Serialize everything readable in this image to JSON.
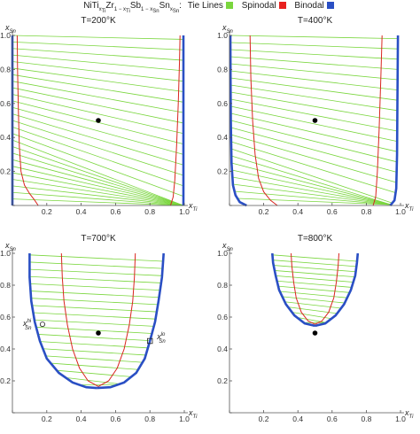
{
  "legend": {
    "title_prefix": "NiTi",
    "sub1": "x",
    "sub1b": "Ti",
    "title_mid1": "Zr",
    "sub2": "1 − x",
    "sub2b": "Ti",
    "title_mid2": "Sb",
    "sub3": "1 − x",
    "sub3b": "Sn",
    "title_mid3": "Sn",
    "sub4": "x",
    "sub4b": "Sn",
    "title_suffix": ":",
    "entries": [
      {
        "label": "Tie Lines",
        "color": "#7ad63e"
      },
      {
        "label": "Spinodal",
        "color": "#e8211f"
      },
      {
        "label": "Binodal",
        "color": "#2a4fc4"
      }
    ]
  },
  "colors": {
    "tie": "#7ad63e",
    "spinodal": "#d9251f",
    "binodal": "#2a4fc4",
    "point": "#000000"
  },
  "chart_data": [
    {
      "type": "line",
      "title": "T=200°K",
      "xlabel": "x",
      "xlabel_sub": "Ti",
      "ylabel": "x",
      "ylabel_sub": "Sn",
      "xlim": [
        0,
        1.0
      ],
      "ylim": [
        0,
        1.0
      ],
      "xticks": [
        "",
        "0.2",
        "0.4",
        "0.6",
        "0.8",
        "1.0"
      ],
      "yticks": [
        "",
        "0.2",
        "0.4",
        "0.6",
        "0.8",
        "1.0"
      ],
      "alloy_point": [
        0.5,
        0.5
      ],
      "tie_line_count": 26,
      "binodal_left": [
        [
          0.0,
          0.0
        ],
        [
          0.0,
          1.0
        ]
      ],
      "binodal_right": [
        [
          0.995,
          0.0
        ],
        [
          0.995,
          1.0
        ]
      ],
      "spinodal_left": [
        [
          0.15,
          0.0
        ],
        [
          0.13,
          0.03
        ],
        [
          0.1,
          0.07
        ],
        [
          0.07,
          0.12
        ],
        [
          0.05,
          0.2
        ],
        [
          0.04,
          0.35
        ],
        [
          0.035,
          0.55
        ],
        [
          0.03,
          0.8
        ],
        [
          0.028,
          1.0
        ]
      ],
      "spinodal_right": [
        [
          0.92,
          0.0
        ],
        [
          0.935,
          0.05
        ],
        [
          0.945,
          0.15
        ],
        [
          0.955,
          0.35
        ],
        [
          0.965,
          0.6
        ],
        [
          0.972,
          0.85
        ],
        [
          0.975,
          1.0
        ]
      ]
    },
    {
      "type": "line",
      "title": "T=400°K",
      "xlabel": "x",
      "xlabel_sub": "Ti",
      "ylabel": "x",
      "ylabel_sub": "Sn",
      "xlim": [
        0,
        1.0
      ],
      "ylim": [
        0,
        1.0
      ],
      "xticks": [
        "",
        "0.2",
        "0.4",
        "0.6",
        "0.8",
        "1.0"
      ],
      "yticks": [
        "",
        "0.2",
        "0.4",
        "0.6",
        "0.8",
        "1.0"
      ],
      "alloy_point": [
        0.5,
        0.5
      ],
      "tie_line_count": 24,
      "binodal_left": [
        [
          0.1,
          0.0
        ],
        [
          0.06,
          0.02
        ],
        [
          0.035,
          0.06
        ],
        [
          0.02,
          0.12
        ],
        [
          0.012,
          0.25
        ],
        [
          0.008,
          0.5
        ],
        [
          0.006,
          0.75
        ],
        [
          0.005,
          1.0
        ]
      ],
      "binodal_right": [
        [
          0.94,
          0.0
        ],
        [
          0.965,
          0.03
        ],
        [
          0.975,
          0.1
        ],
        [
          0.98,
          0.3
        ],
        [
          0.982,
          0.6
        ],
        [
          0.985,
          1.0
        ]
      ],
      "spinodal_left": [
        [
          0.28,
          0.0
        ],
        [
          0.24,
          0.03
        ],
        [
          0.2,
          0.08
        ],
        [
          0.17,
          0.16
        ],
        [
          0.15,
          0.3
        ],
        [
          0.135,
          0.5
        ],
        [
          0.125,
          0.75
        ],
        [
          0.12,
          1.0
        ]
      ],
      "spinodal_right": [
        [
          0.84,
          0.0
        ],
        [
          0.855,
          0.05
        ],
        [
          0.865,
          0.2
        ],
        [
          0.875,
          0.45
        ],
        [
          0.885,
          0.75
        ],
        [
          0.892,
          1.0
        ]
      ]
    },
    {
      "type": "line",
      "title": "T=700°K",
      "xlabel": "x",
      "xlabel_sub": "Ti",
      "ylabel": "x",
      "ylabel_sub": "Sn",
      "xlim": [
        0,
        1.0
      ],
      "ylim": [
        0,
        1.0
      ],
      "xticks": [
        "",
        "0.2",
        "0.4",
        "0.6",
        "0.8",
        "1.0"
      ],
      "yticks": [
        "",
        "0.2",
        "0.4",
        "0.6",
        "0.8",
        "1.0"
      ],
      "alloy_point": [
        0.5,
        0.5
      ],
      "tie_line_count": 19,
      "binodal_left": [
        [
          0.49,
          0.155
        ],
        [
          0.43,
          0.16
        ],
        [
          0.35,
          0.19
        ],
        [
          0.27,
          0.25
        ],
        [
          0.2,
          0.34
        ],
        [
          0.16,
          0.45
        ],
        [
          0.13,
          0.57
        ],
        [
          0.11,
          0.7
        ],
        [
          0.1,
          0.85
        ],
        [
          0.1,
          1.0
        ]
      ],
      "binodal_right": [
        [
          0.49,
          0.155
        ],
        [
          0.57,
          0.16
        ],
        [
          0.65,
          0.19
        ],
        [
          0.72,
          0.25
        ],
        [
          0.77,
          0.34
        ],
        [
          0.8,
          0.45
        ],
        [
          0.83,
          0.57
        ],
        [
          0.85,
          0.7
        ],
        [
          0.87,
          0.85
        ],
        [
          0.88,
          1.0
        ]
      ],
      "spinodal_left": [
        [
          0.5,
          0.165
        ],
        [
          0.44,
          0.2
        ],
        [
          0.39,
          0.28
        ],
        [
          0.35,
          0.4
        ],
        [
          0.32,
          0.55
        ],
        [
          0.3,
          0.7
        ],
        [
          0.29,
          0.85
        ],
        [
          0.285,
          1.0
        ]
      ],
      "spinodal_right": [
        [
          0.5,
          0.165
        ],
        [
          0.56,
          0.2
        ],
        [
          0.61,
          0.28
        ],
        [
          0.65,
          0.4
        ],
        [
          0.68,
          0.55
        ],
        [
          0.7,
          0.7
        ],
        [
          0.71,
          0.85
        ],
        [
          0.715,
          1.0
        ]
      ],
      "annotations": [
        {
          "label": "x",
          "sup": "hi",
          "sub": "Sn",
          "point": [
            0.175,
            0.555
          ],
          "marker": "circle"
        },
        {
          "label": "x",
          "sup": "lo",
          "sub": "Sn",
          "point": [
            0.8,
            0.45
          ],
          "marker": "square"
        }
      ]
    },
    {
      "type": "line",
      "title": "T=800°K",
      "xlabel": "x",
      "xlabel_sub": "Ti",
      "ylabel": "x",
      "ylabel_sub": "Sn",
      "xlim": [
        0,
        1.0
      ],
      "ylim": [
        0,
        1.0
      ],
      "xticks": [
        "",
        "0.2",
        "0.4",
        "0.6",
        "0.8",
        "1.0"
      ],
      "yticks": [
        "",
        "0.2",
        "0.4",
        "0.6",
        "0.8",
        "1.0"
      ],
      "alloy_point": [
        0.5,
        0.5
      ],
      "tie_line_count": 14,
      "binodal_left": [
        [
          0.5,
          0.545
        ],
        [
          0.44,
          0.56
        ],
        [
          0.38,
          0.61
        ],
        [
          0.33,
          0.68
        ],
        [
          0.29,
          0.77
        ],
        [
          0.27,
          0.86
        ],
        [
          0.255,
          0.94
        ],
        [
          0.25,
          1.0
        ]
      ],
      "binodal_right": [
        [
          0.5,
          0.545
        ],
        [
          0.56,
          0.56
        ],
        [
          0.62,
          0.61
        ],
        [
          0.67,
          0.68
        ],
        [
          0.71,
          0.77
        ],
        [
          0.735,
          0.86
        ],
        [
          0.745,
          0.94
        ],
        [
          0.75,
          1.0
        ]
      ],
      "spinodal_left": [
        [
          0.5,
          0.555
        ],
        [
          0.46,
          0.575
        ],
        [
          0.42,
          0.63
        ],
        [
          0.39,
          0.72
        ],
        [
          0.375,
          0.82
        ],
        [
          0.365,
          0.92
        ],
        [
          0.36,
          1.0
        ]
      ],
      "spinodal_right": [
        [
          0.5,
          0.555
        ],
        [
          0.54,
          0.575
        ],
        [
          0.58,
          0.63
        ],
        [
          0.61,
          0.72
        ],
        [
          0.625,
          0.82
        ],
        [
          0.635,
          0.92
        ],
        [
          0.64,
          1.0
        ]
      ]
    }
  ]
}
